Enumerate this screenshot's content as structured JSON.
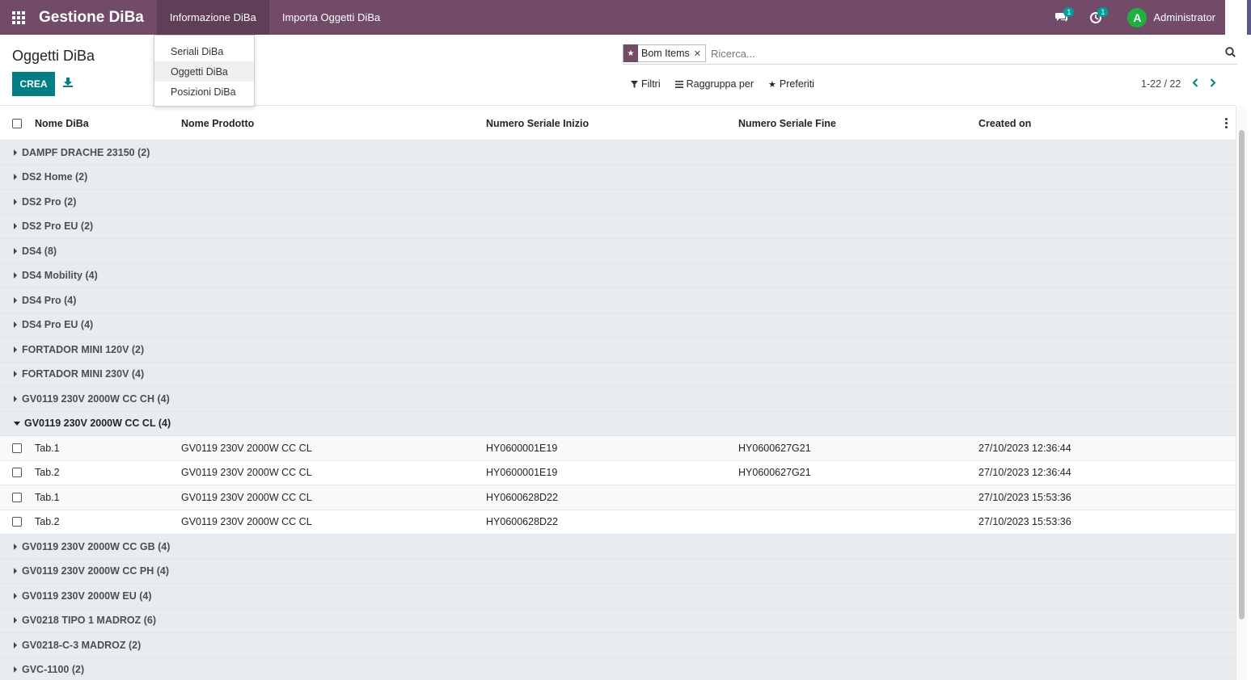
{
  "app": {
    "title": "Gestione DiBa",
    "menus": [
      {
        "label": "Informazione DiBa"
      },
      {
        "label": "Importa Oggetti DiBa"
      }
    ],
    "messages_badge": "1",
    "activities_badge": "1",
    "user_initial": "A",
    "user_name": "Administrator"
  },
  "dropdown": {
    "items": [
      {
        "label": "Seriali DiBa"
      },
      {
        "label": "Oggetti DiBa"
      },
      {
        "label": "Posizioni DiBa"
      }
    ]
  },
  "control": {
    "title": "Oggetti DiBa",
    "create_label": "CREA",
    "facet_label": "Bom Items",
    "search_placeholder": "Ricerca...",
    "filters_label": "Filtri",
    "groupby_label": "Raggruppa per",
    "favorites_label": "Preferiti",
    "pager": "1-22 / 22"
  },
  "table": {
    "columns": {
      "c1": "Nome DiBa",
      "c2": "Nome Prodotto",
      "c3": "Numero Seriale Inizio",
      "c4": "Numero Seriale Fine",
      "c5": "Created on"
    },
    "groups_before": [
      "DAMPF DRACHE 23150 (2)",
      "DS2 Home (2)",
      "DS2 Pro (2)",
      "DS2 Pro EU (2)",
      "DS4 (8)",
      "DS4 Mobility (4)",
      "DS4 Pro (4)",
      "DS4 Pro EU (4)",
      "FORTADOR MINI 120V (2)",
      "FORTADOR MINI 230V (4)",
      "GV0119 230V 2000W CC CH (4)"
    ],
    "open_group": "GV0119 230V 2000W CC CL (4)",
    "rows": [
      {
        "nome": "Tab.1",
        "prodotto": "GV0119 230V 2000W CC CL",
        "inizio": "HY0600001E19",
        "fine": "HY0600627G21",
        "created": "27/10/2023 12:36:44"
      },
      {
        "nome": "Tab.2",
        "prodotto": "GV0119 230V 2000W CC CL",
        "inizio": "HY0600001E19",
        "fine": "HY0600627G21",
        "created": "27/10/2023 12:36:44"
      },
      {
        "nome": "Tab.1",
        "prodotto": "GV0119 230V 2000W CC CL",
        "inizio": "HY0600628D22",
        "fine": "",
        "created": "27/10/2023 15:53:36"
      },
      {
        "nome": "Tab.2",
        "prodotto": "GV0119 230V 2000W CC CL",
        "inizio": "HY0600628D22",
        "fine": "",
        "created": "27/10/2023 15:53:36"
      }
    ],
    "groups_after": [
      "GV0119 230V 2000W CC GB (4)",
      "GV0119 230V 2000W CC PH (4)",
      "GV0119 230V 2000W EU (4)",
      "GV0218 TIPO 1 MADROZ (6)",
      "GV0218-C-3 MADROZ (2)",
      "GVC-1100 (2)"
    ]
  }
}
